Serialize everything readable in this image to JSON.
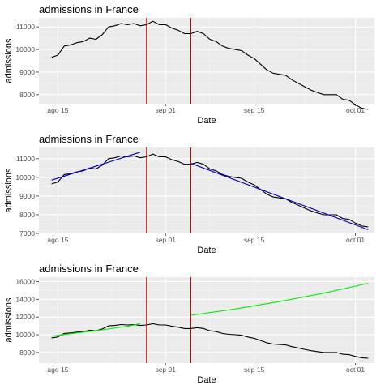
{
  "chart_data": [
    {
      "type": "line",
      "title": "admissions in France",
      "xlabel": "Date",
      "ylabel": "admissions",
      "x_range": [
        "2021-08-12",
        "2021-10-04"
      ],
      "ylim": [
        7600,
        11400
      ],
      "y_ticks": [
        8000,
        9000,
        10000,
        11000
      ],
      "x_ticks": [
        {
          "date": "2021-08-15",
          "label": "ago 15"
        },
        {
          "date": "2021-09-01",
          "label": "sep 01"
        },
        {
          "date": "2021-09-15",
          "label": "sep 15"
        },
        {
          "date": "2021-10-01",
          "label": "oct 01"
        }
      ],
      "vlines": {
        "dates": [
          "2021-08-29",
          "2021-09-05"
        ],
        "color": "#cc0000"
      },
      "series": [
        {
          "color": "#000000",
          "x": [
            "2021-08-14",
            "2021-08-15",
            "2021-08-16",
            "2021-08-17",
            "2021-08-18",
            "2021-08-19",
            "2021-08-20",
            "2021-08-21",
            "2021-08-22",
            "2021-08-23",
            "2021-08-24",
            "2021-08-25",
            "2021-08-26",
            "2021-08-27",
            "2021-08-28",
            "2021-08-29",
            "2021-08-30",
            "2021-08-31",
            "2021-09-01",
            "2021-09-02",
            "2021-09-03",
            "2021-09-04",
            "2021-09-05",
            "2021-09-06",
            "2021-09-07",
            "2021-09-08",
            "2021-09-09",
            "2021-09-10",
            "2021-09-11",
            "2021-09-12",
            "2021-09-13",
            "2021-09-14",
            "2021-09-15",
            "2021-09-16",
            "2021-09-17",
            "2021-09-18",
            "2021-09-19",
            "2021-09-20",
            "2021-09-21",
            "2021-09-22",
            "2021-09-23",
            "2021-09-24",
            "2021-09-25",
            "2021-09-26",
            "2021-09-27",
            "2021-09-28",
            "2021-09-29",
            "2021-09-30",
            "2021-10-01",
            "2021-10-02",
            "2021-10-03"
          ],
          "values": [
            9650,
            9750,
            10150,
            10200,
            10300,
            10350,
            10500,
            10450,
            10650,
            11000,
            11050,
            11150,
            11100,
            11150,
            11050,
            11100,
            11250,
            11100,
            11100,
            10950,
            10850,
            10700,
            10700,
            10800,
            10700,
            10450,
            10350,
            10150,
            10050,
            10000,
            9950,
            9750,
            9600,
            9350,
            9100,
            8950,
            8900,
            8850,
            8650,
            8500,
            8350,
            8200,
            8100,
            8000,
            8000,
            8000,
            7800,
            7750,
            7550,
            7400,
            7350
          ]
        }
      ]
    },
    {
      "type": "line",
      "title": "admissions in France",
      "xlabel": "Date",
      "ylabel": "admissions",
      "x_range": [
        "2021-08-12",
        "2021-10-04"
      ],
      "ylim": [
        7000,
        11600
      ],
      "y_ticks": [
        7000,
        8000,
        9000,
        10000,
        11000
      ],
      "x_ticks": [
        {
          "date": "2021-08-15",
          "label": "ago 15"
        },
        {
          "date": "2021-09-01",
          "label": "sep 01"
        },
        {
          "date": "2021-09-15",
          "label": "sep 15"
        },
        {
          "date": "2021-10-01",
          "label": "oct 01"
        }
      ],
      "vlines": {
        "dates": [
          "2021-08-29",
          "2021-09-05"
        ],
        "color": "#cc0000"
      },
      "series": [
        {
          "color": "#000000",
          "x": [
            "2021-08-14",
            "2021-08-15",
            "2021-08-16",
            "2021-08-17",
            "2021-08-18",
            "2021-08-19",
            "2021-08-20",
            "2021-08-21",
            "2021-08-22",
            "2021-08-23",
            "2021-08-24",
            "2021-08-25",
            "2021-08-26",
            "2021-08-27",
            "2021-08-28",
            "2021-08-29",
            "2021-08-30",
            "2021-08-31",
            "2021-09-01",
            "2021-09-02",
            "2021-09-03",
            "2021-09-04",
            "2021-09-05",
            "2021-09-06",
            "2021-09-07",
            "2021-09-08",
            "2021-09-09",
            "2021-09-10",
            "2021-09-11",
            "2021-09-12",
            "2021-09-13",
            "2021-09-14",
            "2021-09-15",
            "2021-09-16",
            "2021-09-17",
            "2021-09-18",
            "2021-09-19",
            "2021-09-20",
            "2021-09-21",
            "2021-09-22",
            "2021-09-23",
            "2021-09-24",
            "2021-09-25",
            "2021-09-26",
            "2021-09-27",
            "2021-09-28",
            "2021-09-29",
            "2021-09-30",
            "2021-10-01",
            "2021-10-02",
            "2021-10-03"
          ],
          "values": [
            9650,
            9750,
            10150,
            10200,
            10300,
            10350,
            10500,
            10450,
            10650,
            11000,
            11050,
            11150,
            11100,
            11150,
            11050,
            11100,
            11250,
            11100,
            11100,
            10950,
            10850,
            10700,
            10700,
            10800,
            10700,
            10450,
            10350,
            10150,
            10050,
            10000,
            9950,
            9750,
            9600,
            9350,
            9100,
            8950,
            8900,
            8850,
            8650,
            8500,
            8350,
            8200,
            8100,
            8000,
            8000,
            8000,
            7800,
            7750,
            7550,
            7400,
            7350
          ]
        },
        {
          "color": "#0000cc",
          "x": [
            "2021-08-14",
            "2021-08-28"
          ],
          "values": [
            9850,
            11350
          ]
        },
        {
          "color": "#0000cc",
          "x": [
            "2021-09-05",
            "2021-10-03"
          ],
          "values": [
            10750,
            7200
          ]
        }
      ]
    },
    {
      "type": "line",
      "title": "admissions in France",
      "xlabel": "Date",
      "ylabel": "admissions",
      "x_range": [
        "2021-08-12",
        "2021-10-04"
      ],
      "ylim": [
        6800,
        16500
      ],
      "y_ticks": [
        8000,
        10000,
        12000,
        14000,
        16000
      ],
      "x_ticks": [
        {
          "date": "2021-08-15",
          "label": "ago 15"
        },
        {
          "date": "2021-09-01",
          "label": "sep 01"
        },
        {
          "date": "2021-09-15",
          "label": "sep 15"
        },
        {
          "date": "2021-10-01",
          "label": "oct 01"
        }
      ],
      "vlines": {
        "dates": [
          "2021-08-29",
          "2021-09-05"
        ],
        "color": "#cc0000"
      },
      "series": [
        {
          "color": "#000000",
          "x": [
            "2021-08-14",
            "2021-08-15",
            "2021-08-16",
            "2021-08-17",
            "2021-08-18",
            "2021-08-19",
            "2021-08-20",
            "2021-08-21",
            "2021-08-22",
            "2021-08-23",
            "2021-08-24",
            "2021-08-25",
            "2021-08-26",
            "2021-08-27",
            "2021-08-28",
            "2021-08-29",
            "2021-08-30",
            "2021-08-31",
            "2021-09-01",
            "2021-09-02",
            "2021-09-03",
            "2021-09-04",
            "2021-09-05",
            "2021-09-06",
            "2021-09-07",
            "2021-09-08",
            "2021-09-09",
            "2021-09-10",
            "2021-09-11",
            "2021-09-12",
            "2021-09-13",
            "2021-09-14",
            "2021-09-15",
            "2021-09-16",
            "2021-09-17",
            "2021-09-18",
            "2021-09-19",
            "2021-09-20",
            "2021-09-21",
            "2021-09-22",
            "2021-09-23",
            "2021-09-24",
            "2021-09-25",
            "2021-09-26",
            "2021-09-27",
            "2021-09-28",
            "2021-09-29",
            "2021-09-30",
            "2021-10-01",
            "2021-10-02",
            "2021-10-03"
          ],
          "values": [
            9650,
            9750,
            10150,
            10200,
            10300,
            10350,
            10500,
            10450,
            10650,
            11000,
            11050,
            11150,
            11100,
            11150,
            11050,
            11100,
            11250,
            11100,
            11100,
            10950,
            10850,
            10700,
            10700,
            10800,
            10700,
            10450,
            10350,
            10150,
            10050,
            10000,
            9950,
            9750,
            9600,
            9350,
            9100,
            8950,
            8900,
            8850,
            8650,
            8500,
            8350,
            8200,
            8100,
            8000,
            8000,
            8000,
            7800,
            7750,
            7550,
            7400,
            7350
          ]
        },
        {
          "color": "#00ee00",
          "x": [
            "2021-08-14",
            "2021-08-18",
            "2021-08-22",
            "2021-08-26",
            "2021-08-28"
          ],
          "values": [
            9850,
            10200,
            10550,
            10950,
            11250
          ]
        },
        {
          "color": "#00ee00",
          "x": [
            "2021-09-05",
            "2021-09-12",
            "2021-09-19",
            "2021-09-26",
            "2021-10-03"
          ],
          "values": [
            12200,
            12900,
            13750,
            14700,
            15800
          ]
        }
      ]
    }
  ]
}
